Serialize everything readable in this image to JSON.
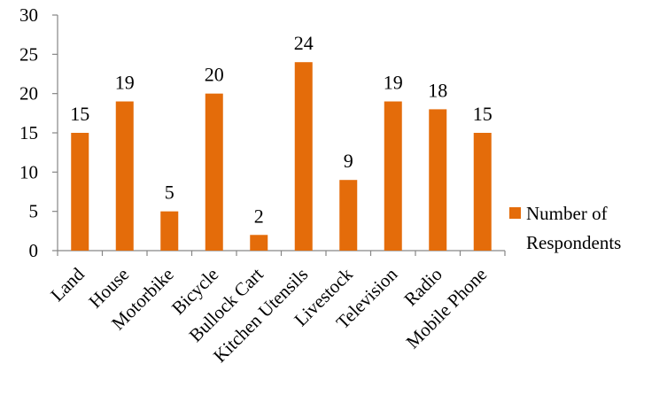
{
  "chart_data": {
    "type": "bar",
    "categories": [
      "Land",
      "House",
      "Motorbike",
      "Bicycle",
      "Bullock Cart",
      "Kitchen Utensils",
      "Livestock",
      "Television",
      "Radio",
      "Mobile Phone"
    ],
    "series": [
      {
        "name": "Number of Respondents",
        "values": [
          15,
          19,
          5,
          20,
          2,
          24,
          9,
          19,
          18,
          15
        ],
        "color": "#E46C0A"
      }
    ],
    "title": "",
    "xlabel": "",
    "ylabel": "",
    "ylim": [
      0,
      30
    ],
    "yticks": [
      0,
      5,
      10,
      15,
      20,
      25,
      30
    ],
    "grid": false,
    "data_labels": true,
    "legend": {
      "position": "right",
      "lines": [
        "Number of",
        "Respondents"
      ]
    }
  }
}
